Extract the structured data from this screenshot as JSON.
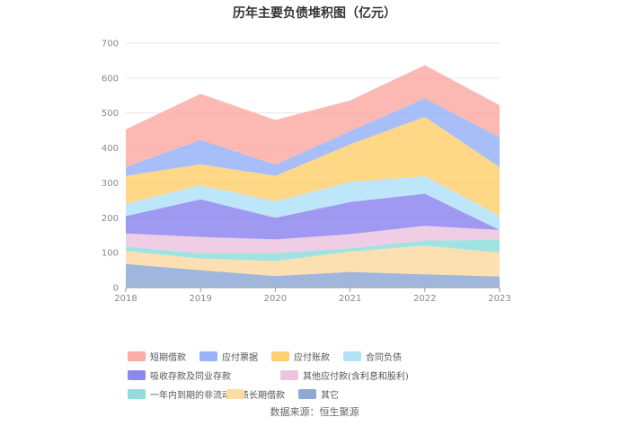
{
  "title": "历年主要负债堆积图（亿元）",
  "source": "数据来源：恒生聚源",
  "chart_data": {
    "type": "area",
    "stacked": true,
    "categories": [
      "2018",
      "2019",
      "2020",
      "2021",
      "2022",
      "2023"
    ],
    "ylim": [
      0,
      700
    ],
    "yticks": [
      0,
      100,
      200,
      300,
      400,
      500,
      600,
      700
    ],
    "grid": true,
    "legend_position": "bottom",
    "series": [
      {
        "name": "其它",
        "color": "#8fa9d6",
        "values": [
          68,
          50,
          33,
          45,
          38,
          32
        ]
      },
      {
        "name": "长期借款",
        "color": "#fddba4",
        "values": [
          37,
          33,
          43,
          58,
          82,
          68
        ]
      },
      {
        "name": "一年内到期的非流动负债",
        "color": "#8fdedc",
        "values": [
          12,
          15,
          22,
          10,
          15,
          37
        ]
      },
      {
        "name": "其他应付款(含利息和股利)",
        "color": "#ecc4e0",
        "values": [
          38,
          47,
          40,
          40,
          42,
          28
        ]
      },
      {
        "name": "吸收存款及同业存款",
        "color": "#8e87ef",
        "values": [
          50,
          108,
          62,
          92,
          92,
          0
        ]
      },
      {
        "name": "合同负债",
        "color": "#b3e2f9",
        "values": [
          35,
          40,
          47,
          57,
          50,
          40
        ]
      },
      {
        "name": "应付账款",
        "color": "#fed072",
        "values": [
          80,
          60,
          73,
          108,
          170,
          140
        ]
      },
      {
        "name": "应付票据",
        "color": "#98b3f7",
        "values": [
          25,
          70,
          32,
          38,
          53,
          85
        ]
      },
      {
        "name": "短期借款",
        "color": "#fcaba6",
        "values": [
          108,
          132,
          128,
          88,
          95,
          92
        ]
      }
    ]
  },
  "legend_order": [
    "短期借款",
    "应付票据",
    "应付账款",
    "合同负债",
    "吸收存款及同业存款",
    "其他应付款(含利息和股利)",
    "一年内到期的非流动负债",
    "长期借款",
    "其它"
  ]
}
